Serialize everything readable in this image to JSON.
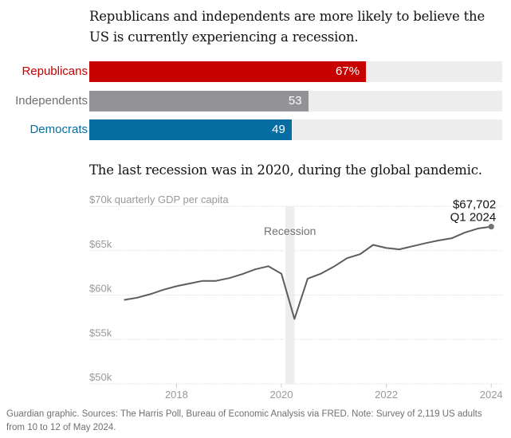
{
  "chart_data": [
    {
      "type": "bar",
      "orientation": "horizontal",
      "title": "Republicans and independents are more likely to believe the US is currently experiencing a recession.",
      "categories": [
        "Republicans",
        "Independents",
        "Democrats"
      ],
      "values": [
        67,
        53,
        49
      ],
      "value_labels": [
        "67%",
        "53",
        "49"
      ],
      "colors": [
        "#c70000",
        "#929297",
        "#056da1"
      ],
      "track_color": "#ededed",
      "xlim": [
        0,
        100
      ],
      "unit": "%"
    },
    {
      "type": "line",
      "title": "The last recession was in 2020, during the global pandemic.",
      "ylabel": "quarterly GDP per capita",
      "ylim": [
        50000,
        70000
      ],
      "yticks": [
        50000,
        55000,
        60000,
        65000,
        70000
      ],
      "ytick_labels": [
        "$50k",
        "$55k",
        "$60k",
        "$65k",
        "$70k"
      ],
      "xlim": [
        2016.75,
        2024
      ],
      "xticks": [
        2018,
        2020,
        2022,
        2024
      ],
      "xtick_labels": [
        "2018",
        "2020",
        "2022",
        "2024"
      ],
      "grid": true,
      "series": [
        {
          "name": "US GDP per capita",
          "color": "#5c5c5c",
          "x": [
            "2017 Q1",
            "2017 Q2",
            "2017 Q3",
            "2017 Q4",
            "2018 Q1",
            "2018 Q2",
            "2018 Q3",
            "2018 Q4",
            "2019 Q1",
            "2019 Q2",
            "2019 Q3",
            "2019 Q4",
            "2020 Q1",
            "2020 Q2",
            "2020 Q3",
            "2020 Q4",
            "2021 Q1",
            "2021 Q2",
            "2021 Q3",
            "2021 Q4",
            "2022 Q1",
            "2022 Q2",
            "2022 Q3",
            "2022 Q4",
            "2023 Q1",
            "2023 Q2",
            "2023 Q3",
            "2023 Q4",
            "2024 Q1"
          ],
          "values": [
            59450,
            59700,
            60100,
            60600,
            61000,
            61300,
            61600,
            61600,
            61900,
            62350,
            62900,
            63250,
            62400,
            57300,
            61850,
            62400,
            63200,
            64150,
            64600,
            65650,
            65300,
            65150,
            65500,
            65850,
            66150,
            66400,
            67050,
            67500,
            67702
          ]
        }
      ],
      "shaded_regions": [
        {
          "label": "Recession",
          "from": "2020 Q1",
          "to": "2020 Q2",
          "color": "#ededed"
        }
      ],
      "annotations": [
        {
          "text": "$67,702",
          "point": "2024 Q1"
        },
        {
          "text": "Q1 2024",
          "point": "2024 Q1"
        },
        {
          "text": "Recession",
          "region": "2020"
        }
      ]
    }
  ],
  "text": {
    "title1": "Republicans and independents are more likely to believe the US is currently experiencing a recession.",
    "title2": "The last recession was in 2020, during the global pandemic.",
    "y_axis_label": "$70k quarterly GDP per capita",
    "end_value": "$67,702",
    "end_period": "Q1 2024",
    "recession_label": "Recession",
    "footer": "Guardian graphic. Sources: The Harris Poll, Bureau of Economic Analysis via FRED. Note: Survey of 2,119 US adults from 10 to 12 of May 2024."
  }
}
